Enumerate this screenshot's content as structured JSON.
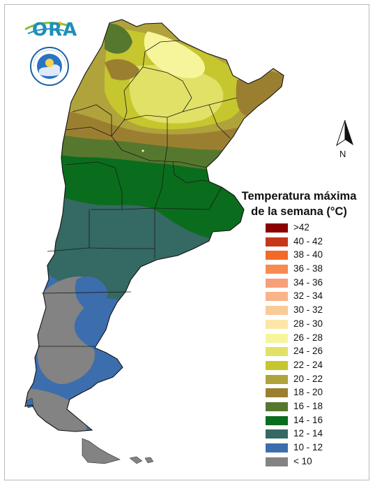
{
  "map": {
    "legend_title_line1": "Temperatura máxima",
    "legend_title_line2": "de la semana (°C)",
    "north_label": "N",
    "logo_text": "ORA",
    "seal_text": "SERVICIO METEOROLÓGICO NACIONAL · ARGENTINA",
    "seal_center": "SMN",
    "legend": [
      {
        "label": ">42",
        "color": "#8b0000"
      },
      {
        "label": "40 - 42",
        "color": "#c8361a"
      },
      {
        "label": "38 - 40",
        "color": "#f26a2a"
      },
      {
        "label": "36 - 38",
        "color": "#f78a52"
      },
      {
        "label": "34 - 36",
        "color": "#f6a079"
      },
      {
        "label": "32 - 34",
        "color": "#f8b48a"
      },
      {
        "label": "30 - 32",
        "color": "#f9cb98"
      },
      {
        "label": "28 - 30",
        "color": "#fde6a6"
      },
      {
        "label": "26 - 28",
        "color": "#f7f59b"
      },
      {
        "label": "24 - 26",
        "color": "#e1e167"
      },
      {
        "label": "22 - 24",
        "color": "#c6c62e"
      },
      {
        "label": "20 - 22",
        "color": "#b0a33b"
      },
      {
        "label": "18 - 20",
        "color": "#9b7f31"
      },
      {
        "label": "16 - 18",
        "color": "#55782e"
      },
      {
        "label": "14 - 16",
        "color": "#0a6d1d"
      },
      {
        "label": "12 - 14",
        "color": "#356963"
      },
      {
        "label": "10 - 12",
        "color": "#3c6ead"
      },
      {
        "label": "< 10",
        "color": "#838383"
      }
    ]
  }
}
